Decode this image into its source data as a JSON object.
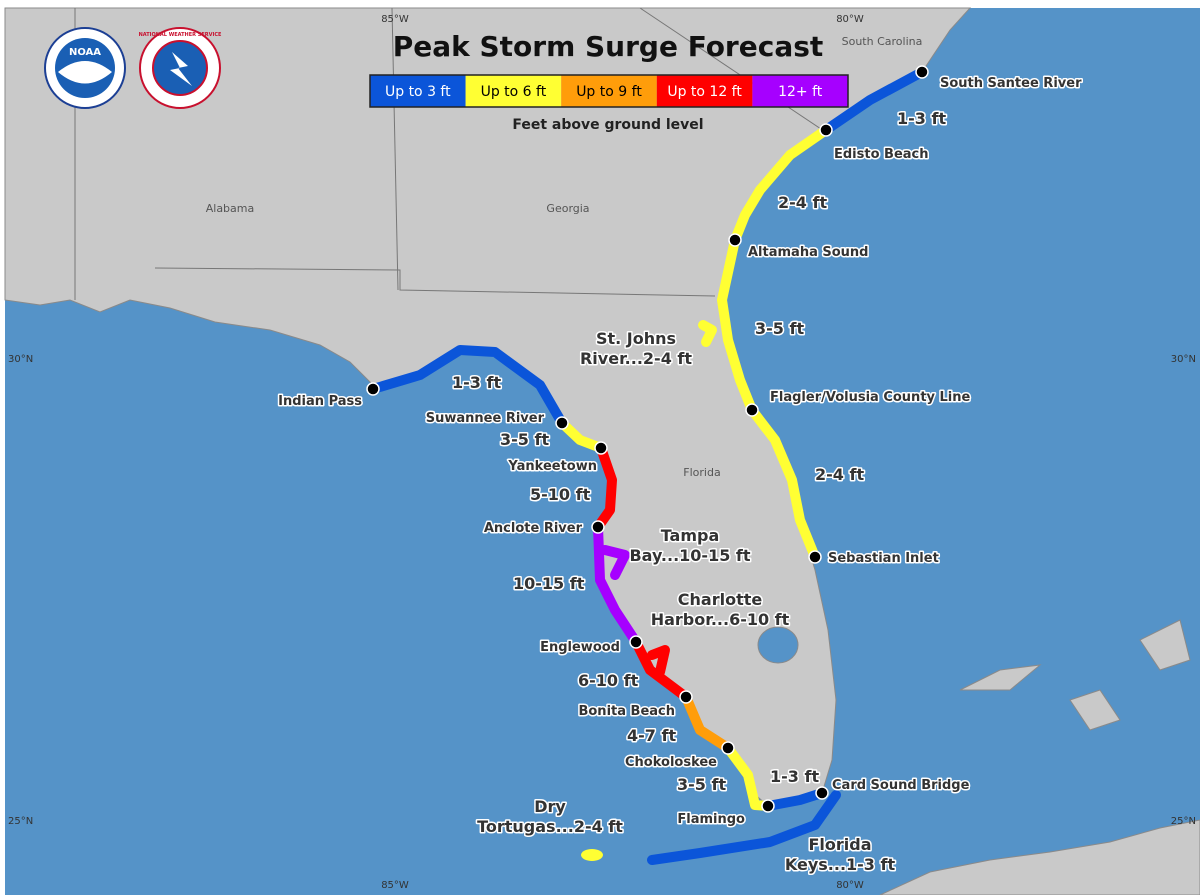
{
  "title": "Peak Storm Surge Forecast",
  "logos": [
    "NOAA",
    "NATIONAL WEATHER SERVICE"
  ],
  "legend": {
    "items": [
      {
        "label": "Up to 3 ft",
        "color": "#0b55d9"
      },
      {
        "label": "Up to 6 ft",
        "color": "#ffff33"
      },
      {
        "label": "Up to 9 ft",
        "color": "#ff9d0a"
      },
      {
        "label": "Up to 12 ft",
        "color": "#ff0000"
      },
      {
        "label": "12+ ft",
        "color": "#a600ff"
      }
    ],
    "caption": "Feet above ground level"
  },
  "regions": [
    "South Carolina",
    "Alabama",
    "Georgia",
    "Florida"
  ],
  "longitudes": [
    "85°W",
    "80°W"
  ],
  "latitudes": [
    "30°N",
    "25°N"
  ],
  "locations": [
    "South Santee River",
    "Edisto Beach",
    "Altamaha Sound",
    "Flagler/Volusia County Line",
    "Sebastian Inlet",
    "Indian Pass",
    "Suwannee River",
    "Yankeetown",
    "Anclote River",
    "Englewood",
    "Bonita Beach",
    "Chokoloskee",
    "Flamingo",
    "Card Sound Bridge"
  ],
  "surge_labels": [
    "1-3 ft",
    "2-4 ft",
    "3-5 ft",
    "2-4 ft",
    "1-3 ft",
    "3-5 ft",
    "5-10 ft",
    "10-15 ft",
    "6-10 ft",
    "4-7 ft",
    "3-5 ft",
    "1-3 ft"
  ],
  "area_labels": [
    [
      "St. Johns",
      "River...2-4 ft"
    ],
    [
      "Tampa",
      "Bay...10-15 ft"
    ],
    [
      "Charlotte",
      "Harbor...6-10 ft"
    ],
    [
      "Dry",
      "Tortugas...2-4 ft"
    ],
    [
      "Florida",
      "Keys...1-3 ft"
    ]
  ]
}
